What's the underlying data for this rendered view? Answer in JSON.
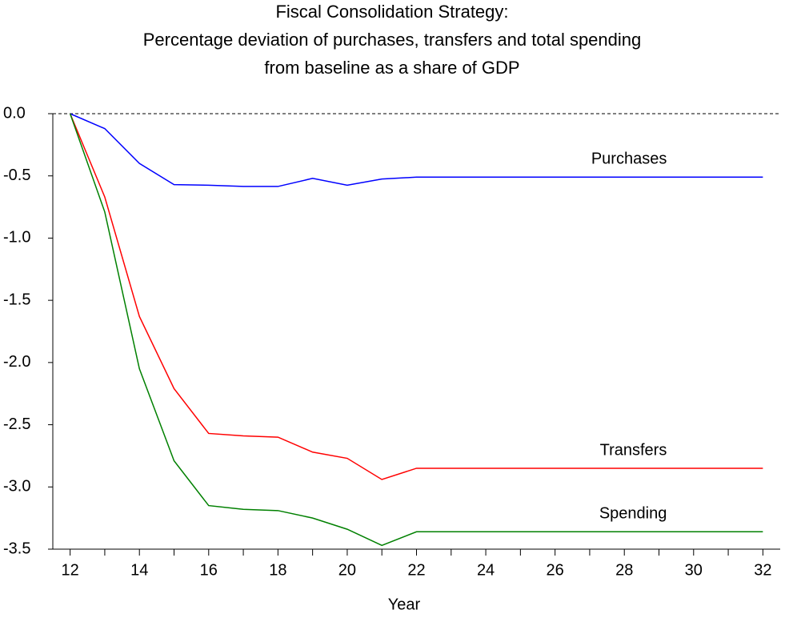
{
  "chart_data": {
    "type": "line",
    "title": [
      "Fiscal Consolidation Strategy:",
      "Percentage deviation of purchases, transfers and total spending",
      "from baseline as a share of GDP"
    ],
    "x_label": "Year",
    "x": [
      12,
      13,
      14,
      15,
      16,
      17,
      18,
      19,
      20,
      21,
      22,
      23,
      24,
      25,
      26,
      27,
      28,
      29,
      30,
      31,
      32
    ],
    "series": [
      {
        "name": "Purchases",
        "color": "#0000ff",
        "values": [
          0,
          -0.12,
          -0.4,
          -0.57,
          -0.575,
          -0.585,
          -0.585,
          -0.52,
          -0.575,
          -0.525,
          -0.51,
          -0.51,
          -0.51,
          -0.51,
          -0.51,
          -0.51,
          -0.51,
          -0.51,
          -0.51,
          -0.51,
          -0.51
        ]
      },
      {
        "name": "Transfers",
        "color": "#ff0000",
        "values": [
          0,
          -0.67,
          -1.63,
          -2.21,
          -2.57,
          -2.59,
          -2.6,
          -2.72,
          -2.77,
          -2.94,
          -2.85,
          -2.85,
          -2.85,
          -2.85,
          -2.85,
          -2.85,
          -2.85,
          -2.85,
          -2.85,
          -2.85,
          -2.85
        ]
      },
      {
        "name": "Spending",
        "color": "#008000",
        "values": [
          0,
          -0.79,
          -2.05,
          -2.79,
          -3.15,
          -3.18,
          -3.19,
          -3.25,
          -3.34,
          -3.47,
          -3.36,
          -3.36,
          -3.36,
          -3.36,
          -3.36,
          -3.36,
          -3.36,
          -3.36,
          -3.36,
          -3.36,
          -3.36
        ]
      }
    ],
    "xlim": [
      11.5,
      32.5
    ],
    "ylim": [
      -3.5,
      0
    ],
    "xticks": [
      12,
      14,
      16,
      18,
      20,
      22,
      24,
      26,
      28,
      30,
      32
    ],
    "yticks": [
      {
        "value": 0,
        "label": "0.0"
      },
      {
        "value": -0.5,
        "label": "-0.5"
      },
      {
        "value": -1,
        "label": "-1.0"
      },
      {
        "value": -1.5,
        "label": "-1.5"
      },
      {
        "value": -2,
        "label": "-2.0"
      },
      {
        "value": -2.5,
        "label": "-2.5"
      },
      {
        "value": -3,
        "label": "-3.0"
      },
      {
        "value": -3.5,
        "label": "-3.5"
      }
    ],
    "zero_line": true
  }
}
